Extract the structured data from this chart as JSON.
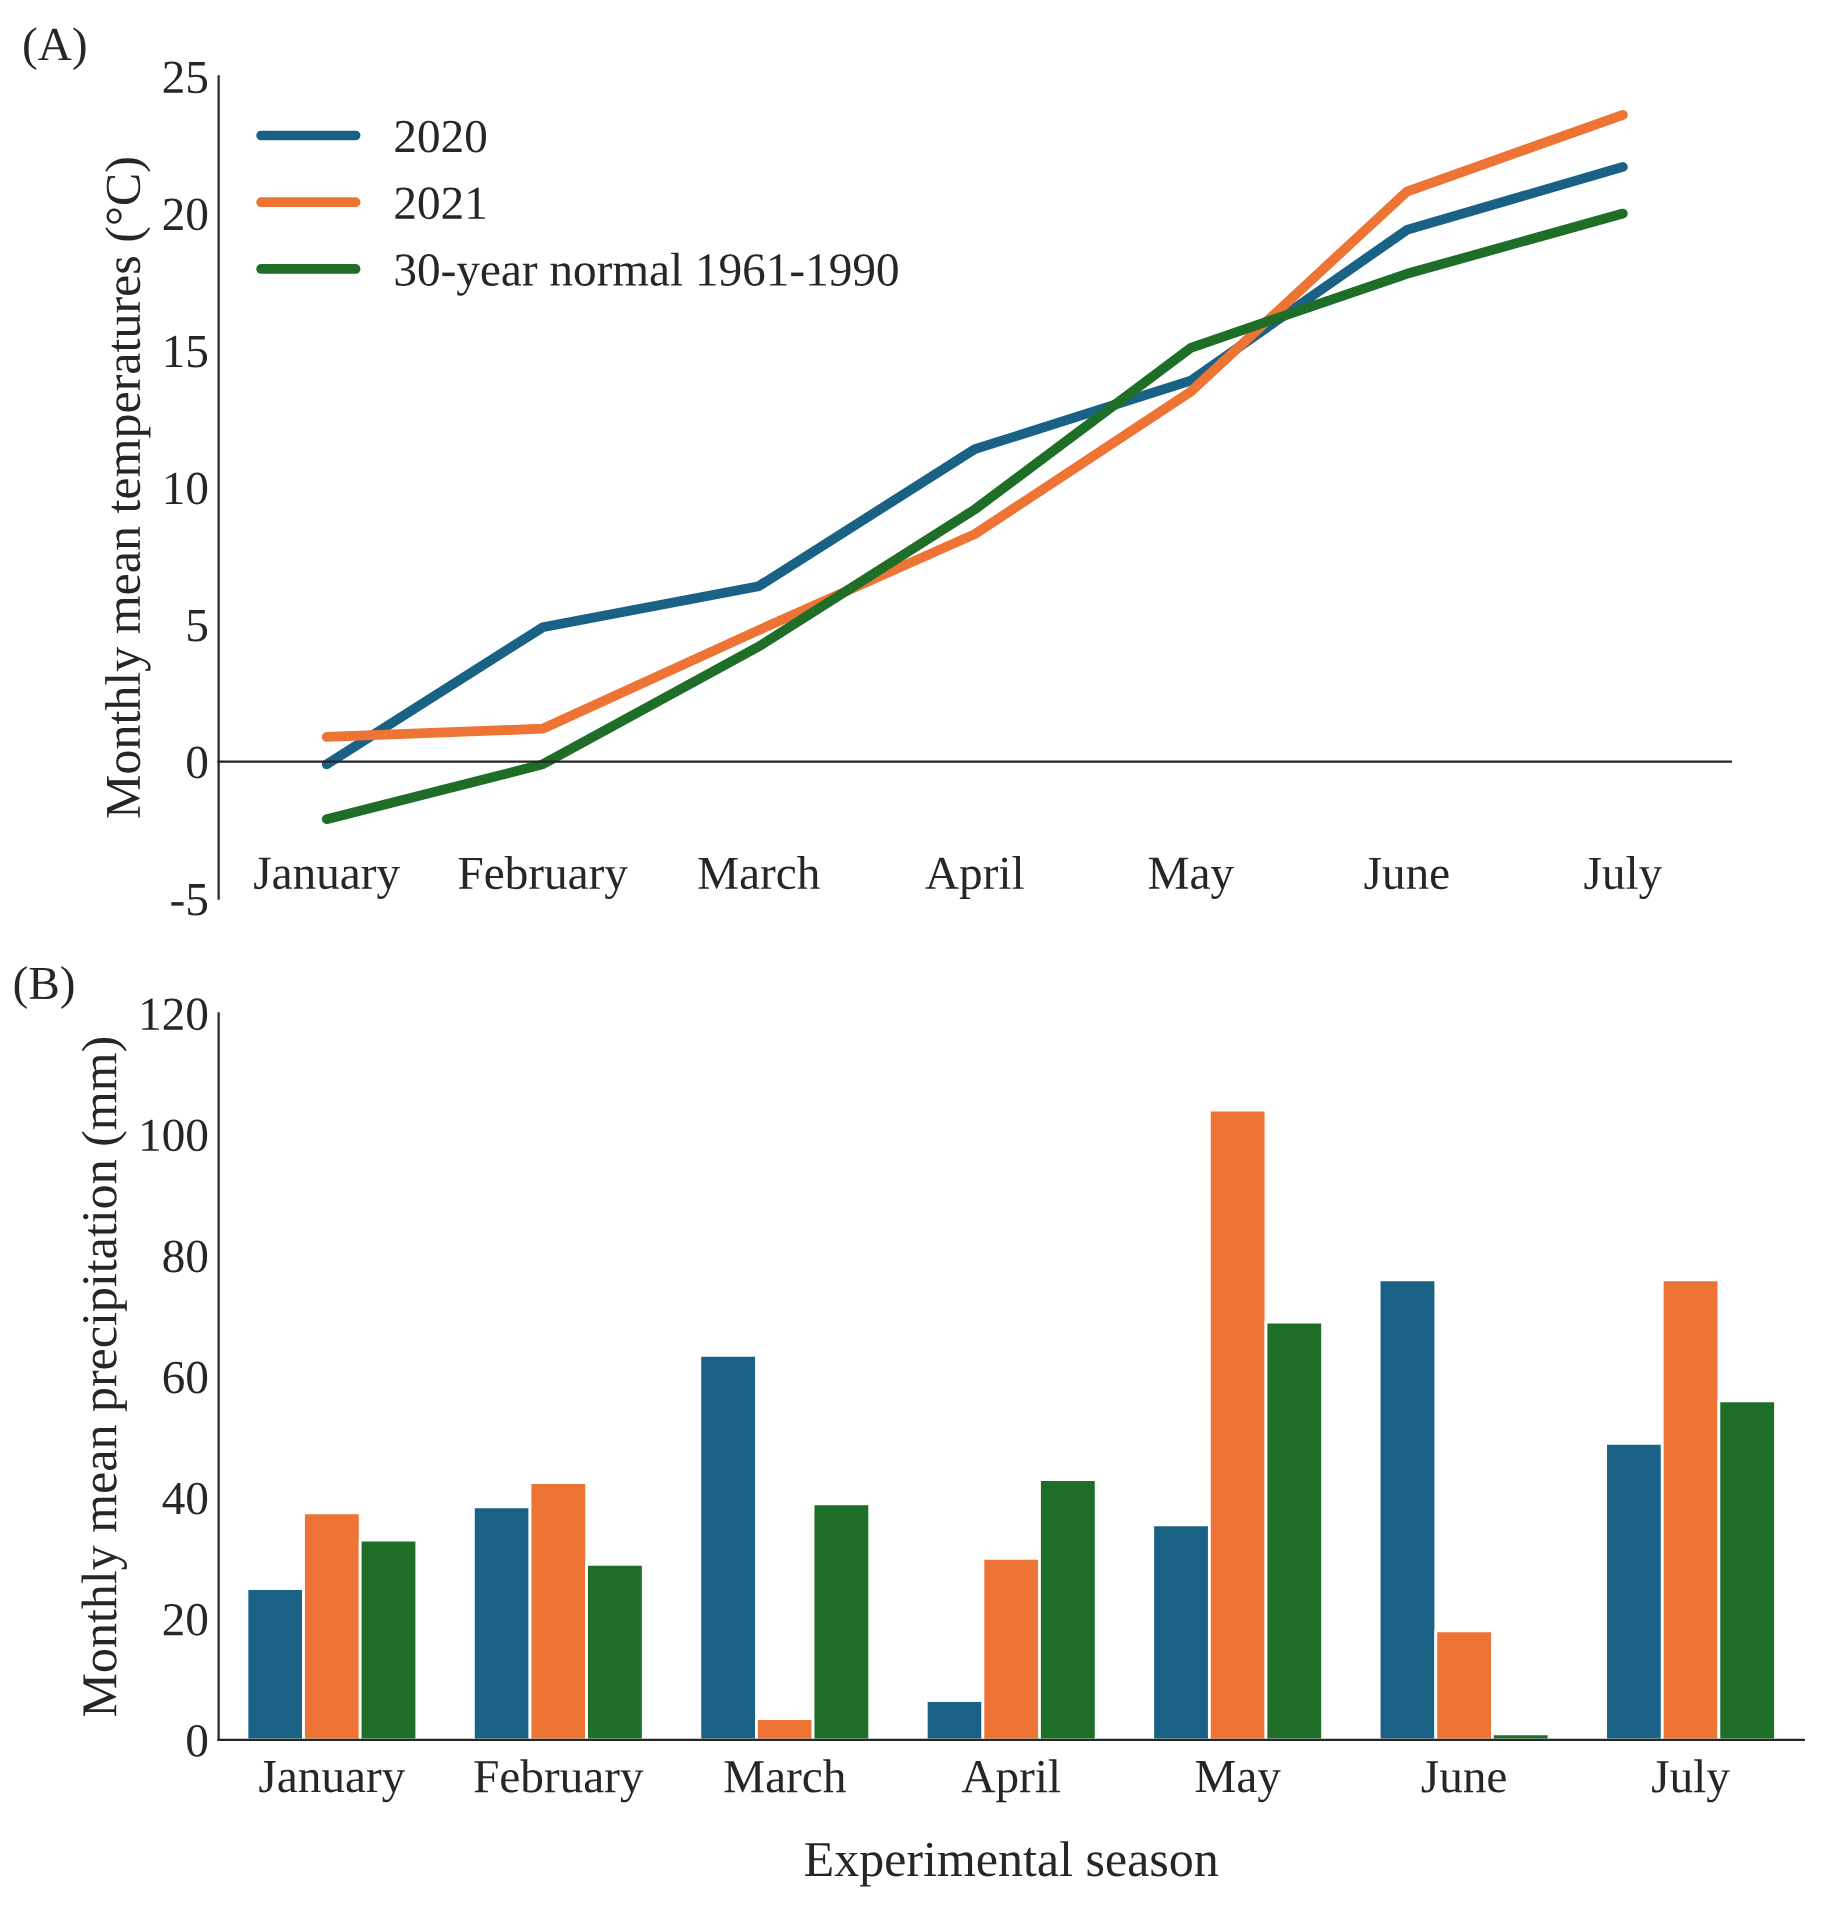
{
  "chart_data": [
    {
      "type": "line",
      "annotations": [
        "(A)"
      ],
      "ylabel": "Monthly mean temperatures (°C)",
      "categories": [
        "January",
        "February",
        "March",
        "April",
        "May",
        "June",
        "July"
      ],
      "series": [
        {
          "name": "2020",
          "color": "#1a6285",
          "values": [
            -0.1,
            4.9,
            6.4,
            11.4,
            13.9,
            19.4,
            21.7
          ]
        },
        {
          "name": "2021",
          "color": "#ed7434",
          "values": [
            0.9,
            1.2,
            4.8,
            8.3,
            13.5,
            20.8,
            23.6
          ]
        },
        {
          "name": "30-year normal 1961-1990",
          "color": "#1e6e28",
          "values": [
            -2.1,
            -0.1,
            4.2,
            9.2,
            15.1,
            17.8,
            20.0
          ]
        }
      ],
      "ylim": [
        -5,
        25
      ],
      "yticks": [
        -5,
        0,
        5,
        10,
        15,
        20,
        25
      ],
      "legend": "top left",
      "grid": false,
      "marker": "none",
      "line_style": "solid"
    },
    {
      "type": "bar",
      "annotations": [
        "(B)"
      ],
      "xlabel": "Experimental season",
      "ylabel": "Monthly mean precipitation (mm)",
      "categories": [
        "January",
        "February",
        "March",
        "April",
        "May",
        "June",
        "July"
      ],
      "series": [
        {
          "color": "#1a6285",
          "values": [
            25,
            38.5,
            63.5,
            6.5,
            35.5,
            76,
            49
          ]
        },
        {
          "color": "#ed7434",
          "values": [
            37.5,
            42.5,
            3.5,
            30,
            104,
            18,
            76
          ]
        },
        {
          "color": "#1e6e28",
          "values": [
            33,
            29,
            39,
            43,
            69,
            1,
            56
          ]
        }
      ],
      "ylim": [
        0,
        120
      ],
      "yticks": [
        0,
        20,
        40,
        60,
        80,
        100,
        120
      ],
      "legend": false,
      "grid": false
    }
  ]
}
